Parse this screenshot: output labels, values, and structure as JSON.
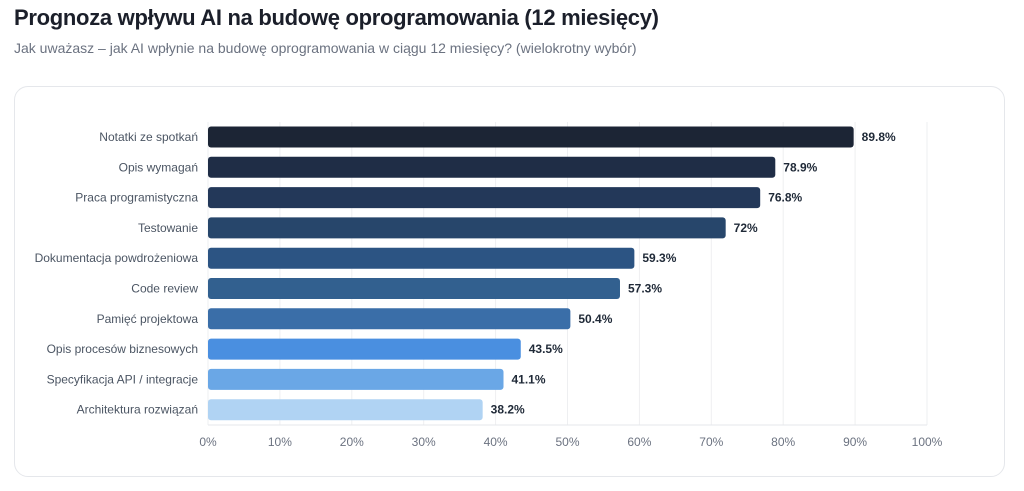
{
  "chart_data": {
    "type": "bar",
    "orientation": "horizontal",
    "title": "Prognoza wpływu AI na budowę oprogramowania (12 miesięcy)",
    "subtitle": "Jak uważasz – jak AI wpłynie na budowę oprogramowania w ciągu 12 miesięcy? (wielokrotny wybór)",
    "categories": [
      "Notatki ze spotkań",
      "Opis wymagań",
      "Praca programistyczna",
      "Testowanie",
      "Dokumentacja powdrożeniowa",
      "Code review",
      "Pamięć projektowa",
      "Opis procesów biznesowych",
      "Specyfikacja API / integracje",
      "Architektura rozwiązań"
    ],
    "values": [
      89.8,
      78.9,
      76.8,
      72,
      59.3,
      57.3,
      50.4,
      43.5,
      41.1,
      38.2
    ],
    "value_labels": [
      "89.8%",
      "78.9%",
      "76.8%",
      "72%",
      "59.3%",
      "57.3%",
      "50.4%",
      "43.5%",
      "41.1%",
      "38.2%"
    ],
    "colors": [
      "#1c2535",
      "#1f2d46",
      "#233859",
      "#27466b",
      "#2c5483",
      "#32608f",
      "#3a6ea8",
      "#4a8fe0",
      "#6aa7e6",
      "#b0d3f3"
    ],
    "xlim": [
      0,
      100
    ],
    "xticks": [
      "0%",
      "10%",
      "20%",
      "30%",
      "40%",
      "50%",
      "60%",
      "70%",
      "80%",
      "90%",
      "100%"
    ],
    "grid": true,
    "xlabel": "",
    "ylabel": ""
  }
}
